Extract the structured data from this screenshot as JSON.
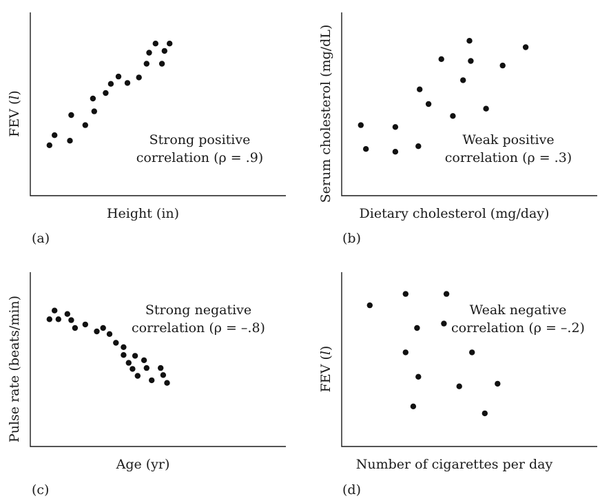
{
  "chart_data": [
    {
      "type": "scatter",
      "panel_label": "(a)",
      "xlabel": "Height (in)",
      "ylabel": "FEV (l)",
      "ylabel_parts": [
        {
          "text": "FEV ("
        },
        {
          "text": "l",
          "italic": true
        },
        {
          "text": ")"
        }
      ],
      "annotation": [
        "Strong positive",
        "correlation (ρ = .9)"
      ],
      "xlim": [
        0,
        100
      ],
      "ylim": [
        0,
        100
      ],
      "grid": false,
      "points": [
        {
          "x": 7.5,
          "y": 27.5
        },
        {
          "x": 9.5,
          "y": 33
        },
        {
          "x": 15.5,
          "y": 30
        },
        {
          "x": 16,
          "y": 44
        },
        {
          "x": 21.5,
          "y": 38.5
        },
        {
          "x": 24.5,
          "y": 53
        },
        {
          "x": 25,
          "y": 46
        },
        {
          "x": 29.5,
          "y": 56
        },
        {
          "x": 31.5,
          "y": 61
        },
        {
          "x": 34.5,
          "y": 65
        },
        {
          "x": 38,
          "y": 61.5
        },
        {
          "x": 42.5,
          "y": 64.5
        },
        {
          "x": 45.5,
          "y": 72
        },
        {
          "x": 46.5,
          "y": 78
        },
        {
          "x": 49,
          "y": 83
        },
        {
          "x": 51.5,
          "y": 72
        },
        {
          "x": 52.5,
          "y": 79
        },
        {
          "x": 54.5,
          "y": 83
        }
      ]
    },
    {
      "type": "scatter",
      "panel_label": "(b)",
      "xlabel": "Dietary cholesterol (mg/day)",
      "ylabel": "Serum cholesterol (mg/dL)",
      "ylabel_parts": [
        {
          "text": "Serum cholesterol (mg/dL)"
        }
      ],
      "annotation": [
        "Weak positive",
        "correlation (ρ = .3)"
      ],
      "xlim": [
        0,
        100
      ],
      "ylim": [
        0,
        100
      ],
      "grid": false,
      "points": [
        {
          "x": 7.5,
          "y": 38.5
        },
        {
          "x": 9.5,
          "y": 25.5
        },
        {
          "x": 21,
          "y": 37.5
        },
        {
          "x": 21,
          "y": 24
        },
        {
          "x": 30,
          "y": 27
        },
        {
          "x": 30.5,
          "y": 58
        },
        {
          "x": 34,
          "y": 50
        },
        {
          "x": 39,
          "y": 74.5
        },
        {
          "x": 43.5,
          "y": 43.5
        },
        {
          "x": 47.5,
          "y": 63
        },
        {
          "x": 50,
          "y": 84.5
        },
        {
          "x": 50.5,
          "y": 73.5
        },
        {
          "x": 56.5,
          "y": 47.5
        },
        {
          "x": 63,
          "y": 71
        },
        {
          "x": 72,
          "y": 81
        }
      ]
    },
    {
      "type": "scatter",
      "panel_label": "(c)",
      "xlabel": "Age (yr)",
      "ylabel": "Pulse rate (beats/min)",
      "ylabel_parts": [
        {
          "text": "Pulse rate (beats/min)"
        }
      ],
      "annotation": [
        "Strong negative",
        "correlation (ρ = –.8)"
      ],
      "xlim": [
        0,
        100
      ],
      "ylim": [
        0,
        100
      ],
      "grid": false,
      "points": [
        {
          "x": 7.5,
          "y": 73
        },
        {
          "x": 9.5,
          "y": 78
        },
        {
          "x": 11,
          "y": 73
        },
        {
          "x": 14.5,
          "y": 76
        },
        {
          "x": 16,
          "y": 72.5
        },
        {
          "x": 17.5,
          "y": 68
        },
        {
          "x": 21.5,
          "y": 70
        },
        {
          "x": 26,
          "y": 66
        },
        {
          "x": 28.5,
          "y": 68
        },
        {
          "x": 31,
          "y": 64.5
        },
        {
          "x": 33.5,
          "y": 59.5
        },
        {
          "x": 36.5,
          "y": 57
        },
        {
          "x": 36.5,
          "y": 52.5
        },
        {
          "x": 38.5,
          "y": 48
        },
        {
          "x": 40,
          "y": 44.5
        },
        {
          "x": 41,
          "y": 52
        },
        {
          "x": 42,
          "y": 40.5
        },
        {
          "x": 44.5,
          "y": 49.5
        },
        {
          "x": 45.5,
          "y": 45
        },
        {
          "x": 47.5,
          "y": 38
        },
        {
          "x": 51,
          "y": 45
        },
        {
          "x": 52,
          "y": 41
        },
        {
          "x": 53.5,
          "y": 36.5
        }
      ]
    },
    {
      "type": "scatter",
      "panel_label": "(d)",
      "xlabel": "Number of cigarettes per day",
      "ylabel": "FEV (l)",
      "ylabel_parts": [
        {
          "text": "FEV ("
        },
        {
          "text": "l",
          "italic": true
        },
        {
          "text": ")"
        }
      ],
      "annotation": [
        "Weak negative",
        "correlation (ρ = –.2)"
      ],
      "xlim": [
        0,
        100
      ],
      "ylim": [
        0,
        100
      ],
      "grid": false,
      "points": [
        {
          "x": 11,
          "y": 81
        },
        {
          "x": 25,
          "y": 54
        },
        {
          "x": 25,
          "y": 87.5
        },
        {
          "x": 28,
          "y": 23
        },
        {
          "x": 29.5,
          "y": 68
        },
        {
          "x": 30,
          "y": 40
        },
        {
          "x": 40,
          "y": 70.5
        },
        {
          "x": 41,
          "y": 87.5
        },
        {
          "x": 46,
          "y": 34.5
        },
        {
          "x": 51,
          "y": 54
        },
        {
          "x": 56,
          "y": 19
        },
        {
          "x": 61,
          "y": 36
        }
      ]
    }
  ]
}
